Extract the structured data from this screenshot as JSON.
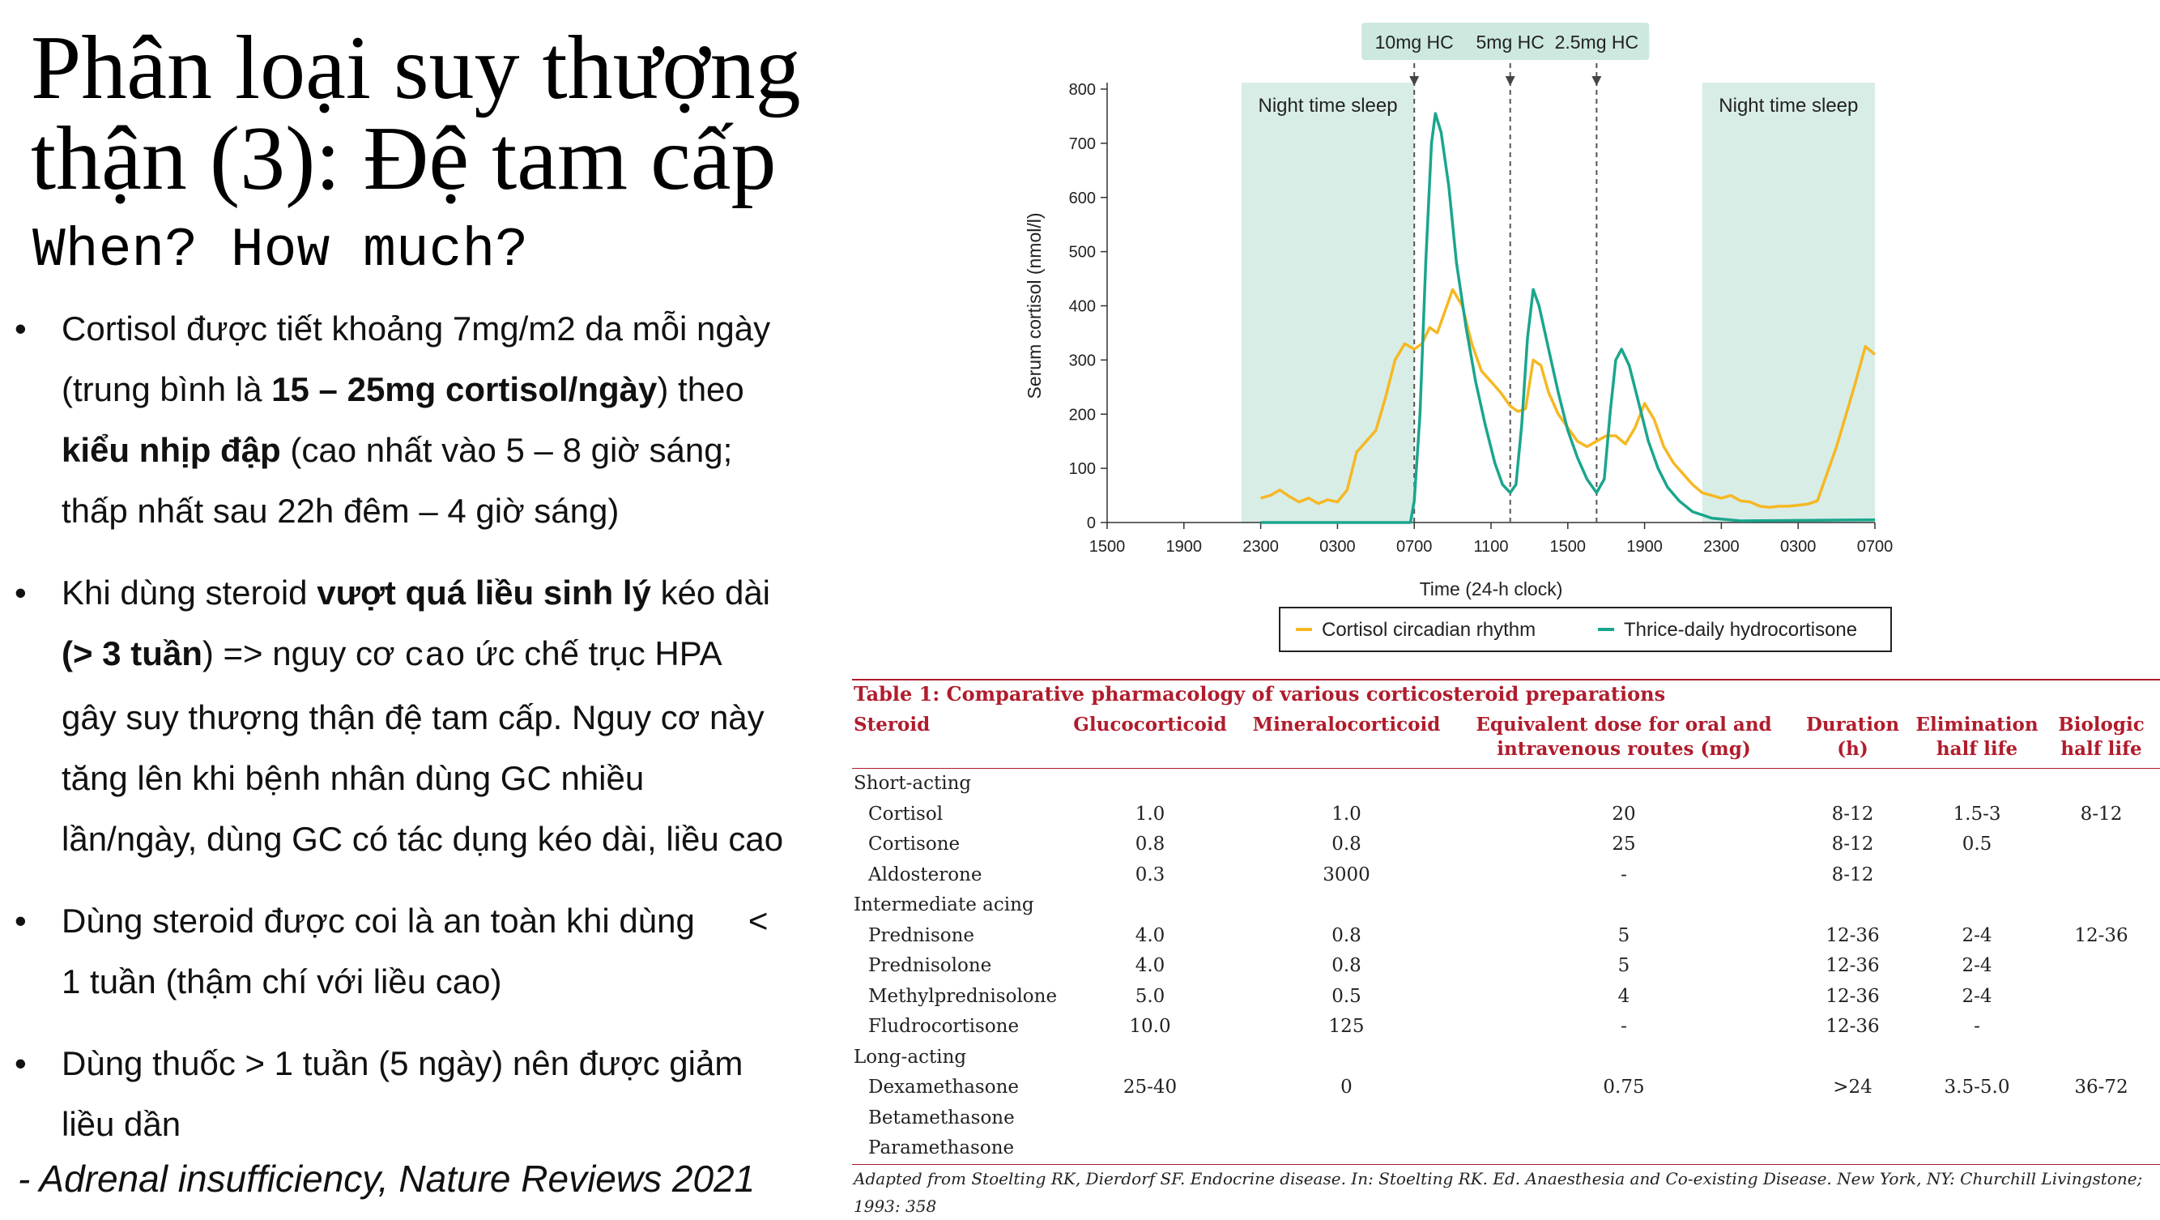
{
  "title": {
    "line1": "Phân loại suy thượng",
    "line2": "thận (3): Đệ tam cấp"
  },
  "subtitle": "When? How much?",
  "bullets": [
    {
      "l1": "Cortisol được tiết khoảng 7mg/m2 da mỗi ngày",
      "l2a": "(trung bình là ",
      "l2b": "15 – 25mg cortisol/ngày",
      "l2c": ") theo",
      "l3a": "kiểu nhịp đập",
      "l3b": " (cao nhất vào 5 – 8 giờ sáng;",
      "l4": "thấp nhất sau 22h đêm – 4 giờ sáng)"
    },
    {
      "l1a": "Khi dùng steroid ",
      "l1b": "vượt quá liều sinh lý",
      "l1c": " kéo dài",
      "l2a": "(> 3 tuần",
      "l2b": ") => nguy cơ ",
      "l2c": "cao",
      "l2d": " ức chế trục HPA",
      "l3": "gây suy thượng thận đệ tam cấp. Nguy cơ này",
      "l4": "tăng lên khi bệnh nhân dùng GC nhiều",
      "l5": "lần/ngày, dùng GC có tác dụng kéo dài, liều cao"
    },
    {
      "l1a": "Dùng steroid được coi là an toàn khi dùng",
      "l1b": "<",
      "l2": "1 tuần (thậm chí với liều cao)"
    },
    {
      "l1": "Dùng thuốc > 1 tuần (5 ngày) nên được giảm",
      "l2": "liều dần"
    }
  ],
  "bullet_symbol": "•",
  "citation": "- Adrenal insufficiency, Nature Reviews 2021",
  "chart_data": {
    "type": "line",
    "ylabel": "Serum cortisol (nmol/l)",
    "xlabel": "Time (24-h clock)",
    "ylim": [
      0,
      800
    ],
    "yticks": [
      0,
      100,
      200,
      300,
      400,
      500,
      600,
      700,
      800
    ],
    "xlim": [
      0,
      40
    ],
    "xticks": [
      {
        "x": 0,
        "label": "1500"
      },
      {
        "x": 4,
        "label": "1900"
      },
      {
        "x": 8,
        "label": "2300"
      },
      {
        "x": 12,
        "label": "0300"
      },
      {
        "x": 16,
        "label": "0700"
      },
      {
        "x": 20,
        "label": "1100"
      },
      {
        "x": 24,
        "label": "1500"
      },
      {
        "x": 28,
        "label": "1900"
      },
      {
        "x": 32,
        "label": "2300"
      },
      {
        "x": 36,
        "label": "0300"
      },
      {
        "x": 40,
        "label": "0700"
      }
    ],
    "shaded_regions": [
      {
        "from": 7.0,
        "to": 16.0,
        "label": "Night time sleep"
      },
      {
        "from": 31.0,
        "to": 40.0,
        "label": "Night time sleep"
      }
    ],
    "dose_markers": [
      {
        "x": 16.0,
        "label": "10mg HC"
      },
      {
        "x": 21.0,
        "label": "5mg HC"
      },
      {
        "x": 25.5,
        "label": "2.5mg HC"
      }
    ],
    "legend_position": "bottom",
    "series": [
      {
        "name": "Cortisol circadian rhythm",
        "color": "#f5b823",
        "points": [
          [
            8.0,
            45
          ],
          [
            8.5,
            50
          ],
          [
            9.0,
            60
          ],
          [
            9.5,
            48
          ],
          [
            10.0,
            38
          ],
          [
            10.5,
            45
          ],
          [
            11.0,
            35
          ],
          [
            11.5,
            42
          ],
          [
            12.0,
            38
          ],
          [
            12.5,
            60
          ],
          [
            13.0,
            130
          ],
          [
            13.5,
            150
          ],
          [
            14.0,
            170
          ],
          [
            14.5,
            230
          ],
          [
            15.0,
            300
          ],
          [
            15.5,
            330
          ],
          [
            16.0,
            320
          ],
          [
            16.4,
            330
          ],
          [
            16.8,
            360
          ],
          [
            17.2,
            350
          ],
          [
            17.6,
            390
          ],
          [
            18.0,
            430
          ],
          [
            18.5,
            400
          ],
          [
            19.0,
            330
          ],
          [
            19.5,
            280
          ],
          [
            20.0,
            260
          ],
          [
            20.5,
            240
          ],
          [
            21.0,
            215
          ],
          [
            21.4,
            205
          ],
          [
            21.8,
            210
          ],
          [
            22.2,
            300
          ],
          [
            22.6,
            290
          ],
          [
            23.0,
            240
          ],
          [
            23.5,
            200
          ],
          [
            24.0,
            175
          ],
          [
            24.5,
            150
          ],
          [
            25.0,
            140
          ],
          [
            25.5,
            150
          ],
          [
            26.0,
            160
          ],
          [
            26.5,
            160
          ],
          [
            27.0,
            145
          ],
          [
            27.5,
            175
          ],
          [
            28.0,
            220
          ],
          [
            28.5,
            190
          ],
          [
            29.0,
            140
          ],
          [
            29.5,
            110
          ],
          [
            30.0,
            90
          ],
          [
            30.5,
            70
          ],
          [
            31.0,
            55
          ],
          [
            31.5,
            50
          ],
          [
            32.0,
            45
          ],
          [
            32.5,
            50
          ],
          [
            33.0,
            40
          ],
          [
            33.5,
            38
          ],
          [
            34.0,
            30
          ],
          [
            34.5,
            28
          ],
          [
            35.0,
            30
          ],
          [
            35.5,
            30
          ],
          [
            36.0,
            32
          ],
          [
            36.5,
            34
          ],
          [
            37.0,
            40
          ],
          [
            37.5,
            90
          ],
          [
            38.0,
            140
          ],
          [
            38.5,
            200
          ],
          [
            39.0,
            260
          ],
          [
            39.5,
            325
          ],
          [
            40.0,
            310
          ]
        ]
      },
      {
        "name": "Thrice-daily hydrocortisone",
        "color": "#1aa68d",
        "points": [
          [
            8.0,
            0
          ],
          [
            15.8,
            0
          ],
          [
            16.0,
            40
          ],
          [
            16.3,
            200
          ],
          [
            16.6,
            480
          ],
          [
            16.9,
            700
          ],
          [
            17.1,
            755
          ],
          [
            17.4,
            720
          ],
          [
            17.8,
            620
          ],
          [
            18.2,
            480
          ],
          [
            18.7,
            360
          ],
          [
            19.2,
            260
          ],
          [
            19.7,
            180
          ],
          [
            20.2,
            110
          ],
          [
            20.6,
            70
          ],
          [
            21.0,
            55
          ],
          [
            21.3,
            70
          ],
          [
            21.6,
            180
          ],
          [
            21.9,
            340
          ],
          [
            22.2,
            430
          ],
          [
            22.5,
            400
          ],
          [
            23.0,
            320
          ],
          [
            23.5,
            240
          ],
          [
            24.0,
            170
          ],
          [
            24.5,
            120
          ],
          [
            25.0,
            80
          ],
          [
            25.5,
            55
          ],
          [
            25.9,
            80
          ],
          [
            26.2,
            200
          ],
          [
            26.5,
            300
          ],
          [
            26.8,
            320
          ],
          [
            27.2,
            290
          ],
          [
            27.7,
            220
          ],
          [
            28.2,
            150
          ],
          [
            28.7,
            100
          ],
          [
            29.2,
            65
          ],
          [
            29.8,
            40
          ],
          [
            30.5,
            20
          ],
          [
            31.5,
            8
          ],
          [
            33.0,
            3
          ],
          [
            40.0,
            5
          ]
        ]
      }
    ]
  },
  "table": {
    "title": "Table 1: Comparative pharmacology of various corticosteroid preparations",
    "headers": [
      {
        "l1": "Steroid",
        "l2": ""
      },
      {
        "l1": "Glucocorticoid",
        "l2": ""
      },
      {
        "l1": "Mineralocorticoid",
        "l2": ""
      },
      {
        "l1": "Equivalent dose for oral and",
        "l2": "intravenous routes (mg)"
      },
      {
        "l1": "Duration",
        "l2": "(h)"
      },
      {
        "l1": "Elimination",
        "l2": "half life"
      },
      {
        "l1": "Biologic",
        "l2": "half life"
      }
    ],
    "groups": [
      {
        "label": "Short-acting",
        "rows": [
          [
            "Cortisol",
            "1.0",
            "1.0",
            "20",
            "8-12",
            "1.5-3",
            "8-12"
          ],
          [
            "Cortisone",
            "0.8",
            "0.8",
            "25",
            "8-12",
            "0.5",
            ""
          ],
          [
            "Aldosterone",
            "0.3",
            "3000",
            "-",
            "8-12",
            "",
            ""
          ]
        ]
      },
      {
        "label": "Intermediate acing",
        "rows": [
          [
            "Prednisone",
            "4.0",
            "0.8",
            "5",
            "12-36",
            "2-4",
            "12-36"
          ],
          [
            "Prednisolone",
            "4.0",
            "0.8",
            "5",
            "12-36",
            "2-4",
            ""
          ],
          [
            "Methylprednisolone",
            "5.0",
            "0.5",
            "4",
            "12-36",
            "2-4",
            ""
          ],
          [
            "Fludrocortisone",
            "10.0",
            "125",
            "-",
            "12-36",
            "-",
            ""
          ]
        ]
      },
      {
        "label": "Long-acting",
        "rows": [
          [
            "Dexamethasone",
            "25-40",
            "0",
            "0.75",
            ">24",
            "3.5-5.0",
            "36-72"
          ],
          [
            "Betamethasone",
            "",
            "",
            "",
            "",
            "",
            ""
          ],
          [
            "Paramethasone",
            "",
            "",
            "",
            "",
            "",
            ""
          ]
        ]
      }
    ],
    "caption": "Adapted from Stoelting RK, Dierdorf SF. Endocrine disease. In: Stoelting RK. Ed. Anaesthesia and Co-existing Disease. New York, NY: Churchill Livingstone; 1993: 358"
  }
}
